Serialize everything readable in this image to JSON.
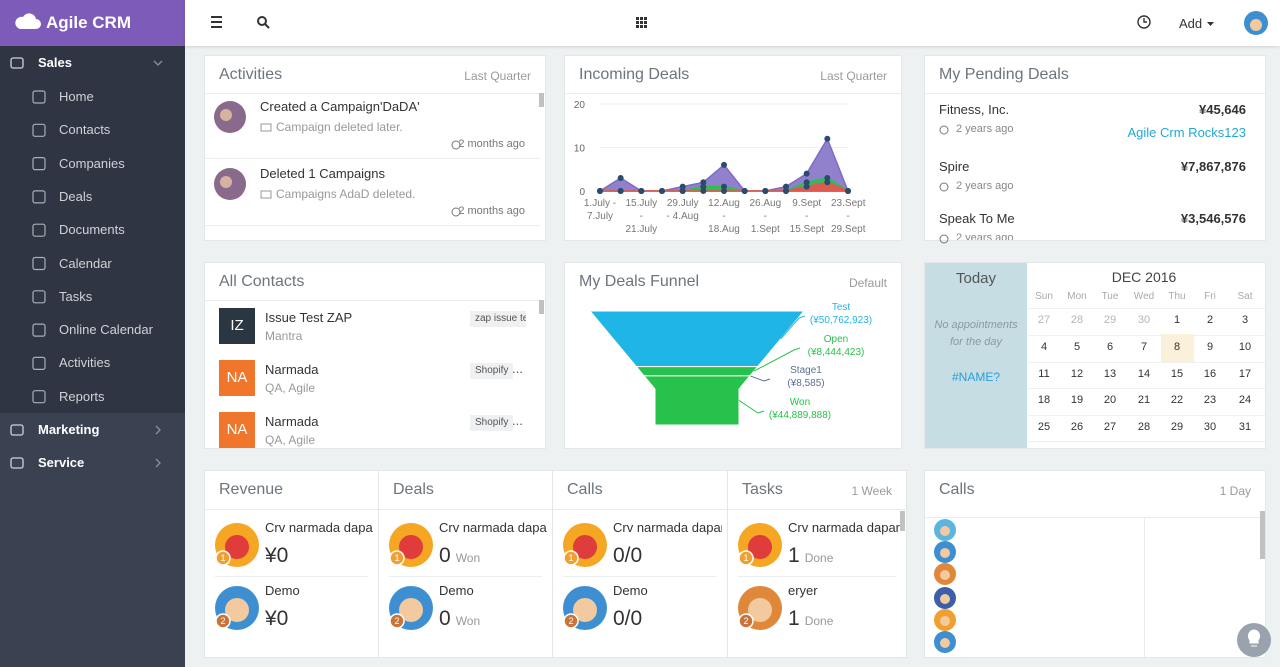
{
  "sidebar": {
    "brand": "Agile CRM",
    "sections": [
      {
        "label": "Sales",
        "items": [
          "Home",
          "Contacts",
          "Companies",
          "Deals",
          "Documents",
          "Calendar",
          "Tasks",
          "Online Calendar",
          "Activities",
          "Reports"
        ]
      },
      {
        "label": "Marketing"
      },
      {
        "label": "Service"
      }
    ]
  },
  "topbar": {
    "add": "Add"
  },
  "activities": {
    "title": "Activities",
    "period": "Last Quarter",
    "items": [
      {
        "title": "Created a Campaign'DaDA'",
        "detail": "Campaign deleted later.",
        "time": "2 months ago"
      },
      {
        "title": "Deleted 1 Campaigns",
        "detail": "Campaigns AdaD deleted.",
        "time": "2 months ago"
      }
    ]
  },
  "chart_data": [
    {
      "type": "area",
      "title": "Incoming Deals",
      "subtitle": "Last Quarter",
      "categories": [
        "1.July - 7.July",
        null,
        "15.July - 21.July",
        null,
        "29.July - 4.Aug",
        null,
        "12.Aug - 18.Aug",
        null,
        "26.Aug - 1.Sept",
        null,
        "9.Sept - 15.Sept",
        null,
        "23.Sept - 29.Sept"
      ],
      "series": [
        {
          "color": "#7e6bc4",
          "values": [
            0,
            3,
            0,
            0,
            1,
            2,
            6,
            0,
            0,
            1,
            4,
            12,
            0
          ]
        },
        {
          "color": "#27c24c",
          "values": [
            0,
            0,
            0,
            0,
            0,
            1,
            1,
            0,
            0,
            0,
            2,
            3,
            0
          ]
        },
        {
          "color": "#f05050",
          "values": [
            0,
            0,
            0,
            0,
            0,
            0,
            0,
            0,
            0,
            0,
            1,
            2,
            0
          ]
        }
      ],
      "marker_color": "#2c4a6e",
      "ylim": [
        0,
        20
      ],
      "yticks": [
        0,
        10,
        20
      ],
      "grid": true
    },
    {
      "type": "funnel",
      "title": "My Deals Funnel",
      "subtitle": "Default",
      "categories": [
        "Test",
        "Open",
        "Stage1",
        "Won"
      ],
      "values": [
        50762923,
        8444423,
        8585,
        44889888
      ],
      "value_labels": [
        "(¥50,762,923)",
        "(¥8,444,423)",
        "(¥8,585)",
        "(¥44,889,888)"
      ],
      "colors": [
        "#1fb5e6",
        "#27c24c",
        "#5d6f96",
        "#27c24c"
      ]
    }
  ],
  "pending_deals": {
    "title": "My Pending Deals",
    "items": [
      {
        "name": "Fitness, Inc.",
        "amount": "¥45,646",
        "time": "2 years ago",
        "owner": "Agile Crm Rocks123"
      },
      {
        "name": "Spire",
        "amount": "¥7,867,876",
        "time": "2 years ago"
      },
      {
        "name": "Speak To Me",
        "amount": "¥3,546,576",
        "time": "2 years ago"
      }
    ]
  },
  "contacts": {
    "title": "All Contacts",
    "items": [
      {
        "initials": "IZ",
        "name": "Issue Test ZAP",
        "detail": "Mantra",
        "tag": "zap issue tes"
      },
      {
        "initials": "NA",
        "name": "Narmada",
        "detail": "QA, Agile",
        "tag": "Shopify",
        "more": "..."
      },
      {
        "initials": "NA",
        "name": "Narmada",
        "detail": "QA, Agile",
        "tag": "Shopify",
        "more": "..."
      }
    ]
  },
  "today": {
    "title": "Today",
    "empty": "No appointments for the day",
    "link": "#NAME?"
  },
  "calendar": {
    "month": "DEC 2016",
    "weekdays": [
      "Sun",
      "Mon",
      "Tue",
      "Wed",
      "Thu",
      "Fri",
      "Sat"
    ],
    "weeks": [
      [
        27,
        28,
        29,
        30,
        1,
        2,
        3
      ],
      [
        4,
        5,
        6,
        7,
        8,
        9,
        10
      ],
      [
        11,
        12,
        13,
        14,
        15,
        16,
        17
      ],
      [
        18,
        19,
        20,
        21,
        22,
        23,
        24
      ],
      [
        25,
        26,
        27,
        28,
        29,
        30,
        31
      ]
    ]
  },
  "leaderboards": {
    "period": "1 Week",
    "panels": [
      {
        "title": "Revenue",
        "rows": [
          {
            "rank": 1,
            "name": "Crv narmada dapar",
            "value": "¥0"
          },
          {
            "rank": 2,
            "name": "Demo",
            "value": "¥0"
          }
        ]
      },
      {
        "title": "Deals",
        "rows": [
          {
            "rank": 1,
            "name": "Crv narmada dapar",
            "value": 0,
            "unit": "Won"
          },
          {
            "rank": 2,
            "name": "Demo",
            "value": 0,
            "unit": "Won"
          }
        ]
      },
      {
        "title": "Calls",
        "rows": [
          {
            "rank": 1,
            "name": "Crv narmada dapar",
            "value": "0/0"
          },
          {
            "rank": 2,
            "name": "Demo",
            "value": "0/0"
          }
        ]
      },
      {
        "title": "Tasks",
        "rows": [
          {
            "rank": 1,
            "name": "Crv narmada dapar",
            "value": 1,
            "unit": "Done"
          },
          {
            "rank": 2,
            "name": "eryer",
            "value": 1,
            "unit": "Done"
          }
        ]
      }
    ]
  },
  "calls": {
    "title": "Calls",
    "period": "1 Day"
  }
}
